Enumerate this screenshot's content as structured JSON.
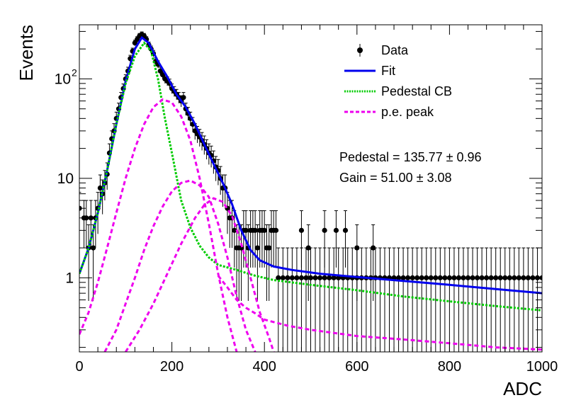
{
  "chart_data": {
    "type": "scatter",
    "xlabel": "ADC",
    "ylabel": "Events",
    "xlim": [
      0,
      1000
    ],
    "ylim": [
      0.18,
      350
    ],
    "yscale": "log",
    "grid": false,
    "legend_placement": "top-right",
    "x_ticks": [
      {
        "value": 0,
        "label": "0"
      },
      {
        "value": 200,
        "label": "200"
      },
      {
        "value": 400,
        "label": "400"
      },
      {
        "value": 600,
        "label": "600"
      },
      {
        "value": 800,
        "label": "800"
      },
      {
        "value": 1000,
        "label": "1000"
      }
    ],
    "y_ticks": [
      {
        "value": 1,
        "label": "1",
        "sup": ""
      },
      {
        "value": 10,
        "label": "10",
        "sup": ""
      },
      {
        "value": 100,
        "label": "10",
        "sup": "2"
      }
    ],
    "annotations": [
      {
        "label": "Pedestal = 135.77",
        "pm": "±",
        "value": "0.96"
      },
      {
        "label": "Gain = 51.00",
        "pm": "±",
        "value": "3.08"
      }
    ],
    "legend": [
      {
        "label": "Data",
        "kind": "marker",
        "color": "#000000"
      },
      {
        "label": "Fit",
        "kind": "line",
        "color": "#0000ee"
      },
      {
        "label": "Pedestal CB",
        "kind": "dotted",
        "color": "#00cc00"
      },
      {
        "label": "p.e. peak",
        "kind": "dashed",
        "color": "#ee00ee"
      }
    ],
    "series": [
      {
        "name": "Data",
        "color": "#000000",
        "points": [
          [
            0,
            5
          ],
          [
            10,
            4
          ],
          [
            15,
            4
          ],
          [
            20,
            2
          ],
          [
            25,
            4
          ],
          [
            30,
            2
          ],
          [
            35,
            4
          ],
          [
            40,
            5
          ],
          [
            45,
            8
          ],
          [
            50,
            7
          ],
          [
            55,
            9
          ],
          [
            60,
            11
          ],
          [
            65,
            18
          ],
          [
            70,
            25
          ],
          [
            75,
            30
          ],
          [
            80,
            40
          ],
          [
            85,
            50
          ],
          [
            90,
            65
          ],
          [
            95,
            80
          ],
          [
            100,
            100
          ],
          [
            105,
            120
          ],
          [
            110,
            160
          ],
          [
            115,
            190
          ],
          [
            120,
            230
          ],
          [
            125,
            250
          ],
          [
            130,
            270
          ],
          [
            135,
            280
          ],
          [
            140,
            270
          ],
          [
            145,
            250
          ],
          [
            150,
            220
          ],
          [
            155,
            200
          ],
          [
            160,
            180
          ],
          [
            165,
            150
          ],
          [
            170,
            140
          ],
          [
            175,
            120
          ],
          [
            180,
            110
          ],
          [
            185,
            100
          ],
          [
            190,
            95
          ],
          [
            195,
            90
          ],
          [
            200,
            80
          ],
          [
            205,
            75
          ],
          [
            210,
            70
          ],
          [
            215,
            65
          ],
          [
            220,
            60
          ],
          [
            225,
            65
          ],
          [
            230,
            50
          ],
          [
            235,
            45
          ],
          [
            240,
            40
          ],
          [
            245,
            35
          ],
          [
            250,
            30
          ],
          [
            255,
            28
          ],
          [
            260,
            26
          ],
          [
            265,
            24
          ],
          [
            270,
            22
          ],
          [
            275,
            20
          ],
          [
            280,
            18
          ],
          [
            285,
            17
          ],
          [
            290,
            15
          ],
          [
            295,
            13
          ],
          [
            300,
            12
          ],
          [
            305,
            10
          ],
          [
            310,
            8
          ],
          [
            315,
            8
          ],
          [
            320,
            5
          ],
          [
            325,
            4
          ],
          [
            330,
            4
          ],
          [
            335,
            3
          ],
          [
            340,
            2
          ],
          [
            345,
            2
          ],
          [
            350,
            2
          ],
          [
            355,
            3
          ],
          [
            360,
            3
          ],
          [
            365,
            2
          ],
          [
            370,
            3
          ],
          [
            375,
            3
          ],
          [
            380,
            3
          ],
          [
            385,
            2
          ],
          [
            390,
            3
          ],
          [
            395,
            3
          ],
          [
            400,
            3
          ],
          [
            405,
            2
          ],
          [
            410,
            2
          ],
          [
            415,
            3
          ],
          [
            420,
            3
          ],
          [
            425,
            3
          ],
          [
            430,
            1
          ],
          [
            440,
            1
          ],
          [
            450,
            1
          ],
          [
            460,
            1
          ],
          [
            470,
            1
          ],
          [
            480,
            1
          ],
          [
            490,
            1
          ],
          [
            500,
            1
          ],
          [
            510,
            1
          ],
          [
            520,
            1
          ],
          [
            530,
            1
          ],
          [
            540,
            1
          ],
          [
            550,
            1
          ],
          [
            560,
            1
          ],
          [
            570,
            1
          ],
          [
            580,
            1
          ],
          [
            590,
            1
          ],
          [
            600,
            1
          ],
          [
            610,
            1
          ],
          [
            620,
            1
          ],
          [
            630,
            1
          ],
          [
            640,
            1
          ],
          [
            650,
            1
          ],
          [
            660,
            1
          ],
          [
            670,
            1
          ],
          [
            680,
            1
          ],
          [
            690,
            1
          ],
          [
            700,
            1
          ],
          [
            710,
            1
          ],
          [
            720,
            1
          ],
          [
            730,
            1
          ],
          [
            740,
            1
          ],
          [
            750,
            1
          ],
          [
            760,
            1
          ],
          [
            770,
            1
          ],
          [
            780,
            1
          ],
          [
            790,
            1
          ],
          [
            800,
            1
          ],
          [
            810,
            1
          ],
          [
            820,
            1
          ],
          [
            830,
            1
          ],
          [
            840,
            1
          ],
          [
            850,
            1
          ],
          [
            860,
            1
          ],
          [
            870,
            1
          ],
          [
            880,
            1
          ],
          [
            890,
            1
          ],
          [
            900,
            1
          ],
          [
            910,
            1
          ],
          [
            920,
            1
          ],
          [
            930,
            1
          ],
          [
            940,
            1
          ],
          [
            950,
            1
          ],
          [
            960,
            1
          ],
          [
            970,
            1
          ],
          [
            980,
            1
          ],
          [
            990,
            1
          ],
          [
            1000,
            1
          ],
          [
            480,
            3
          ],
          [
            495,
            2
          ],
          [
            530,
            3
          ],
          [
            555,
            3
          ],
          [
            575,
            3
          ],
          [
            600,
            2
          ],
          [
            635,
            2
          ]
        ]
      },
      {
        "name": "Fit",
        "color": "#0000ee",
        "points": [
          [
            0,
            1.1
          ],
          [
            20,
            2
          ],
          [
            40,
            4.5
          ],
          [
            60,
            12
          ],
          [
            80,
            35
          ],
          [
            100,
            95
          ],
          [
            120,
            200
          ],
          [
            135,
            260
          ],
          [
            150,
            230
          ],
          [
            170,
            150
          ],
          [
            190,
            105
          ],
          [
            210,
            70
          ],
          [
            230,
            52
          ],
          [
            250,
            35
          ],
          [
            270,
            22
          ],
          [
            290,
            14
          ],
          [
            310,
            9
          ],
          [
            330,
            5.5
          ],
          [
            350,
            3
          ],
          [
            370,
            1.9
          ],
          [
            390,
            1.5
          ],
          [
            420,
            1.3
          ],
          [
            460,
            1.2
          ],
          [
            520,
            1.1
          ],
          [
            600,
            1.02
          ],
          [
            700,
            0.93
          ],
          [
            800,
            0.85
          ],
          [
            900,
            0.77
          ],
          [
            1000,
            0.7
          ]
        ]
      },
      {
        "name": "Pedestal CB",
        "color": "#00cc00",
        "points": [
          [
            0,
            1.1
          ],
          [
            20,
            2
          ],
          [
            40,
            4.5
          ],
          [
            60,
            12
          ],
          [
            80,
            35
          ],
          [
            100,
            90
          ],
          [
            120,
            170
          ],
          [
            140,
            230
          ],
          [
            155,
            190
          ],
          [
            170,
            100
          ],
          [
            185,
            40
          ],
          [
            200,
            18
          ],
          [
            220,
            6
          ],
          [
            240,
            3.2
          ],
          [
            260,
            2.1
          ],
          [
            280,
            1.6
          ],
          [
            300,
            1.35
          ],
          [
            340,
            1.2
          ],
          [
            380,
            1.05
          ],
          [
            420,
            0.95
          ],
          [
            500,
            0.85
          ],
          [
            600,
            0.75
          ],
          [
            700,
            0.65
          ],
          [
            800,
            0.58
          ],
          [
            900,
            0.52
          ],
          [
            1000,
            0.47
          ]
        ]
      },
      {
        "name": "p.e. peak 1",
        "color": "#ee00ee",
        "points": [
          [
            0,
            0.27
          ],
          [
            20,
            0.45
          ],
          [
            40,
            0.9
          ],
          [
            60,
            2
          ],
          [
            80,
            4.5
          ],
          [
            100,
            10
          ],
          [
            120,
            20
          ],
          [
            140,
            35
          ],
          [
            160,
            52
          ],
          [
            180,
            62
          ],
          [
            200,
            58
          ],
          [
            220,
            42
          ],
          [
            240,
            24
          ],
          [
            260,
            10
          ],
          [
            280,
            3.5
          ],
          [
            300,
            1.1
          ],
          [
            320,
            0.4
          ],
          [
            340,
            0.18
          ]
        ]
      },
      {
        "name": "p.e. peak 2",
        "color": "#ee00ee",
        "points": [
          [
            55,
            0.18
          ],
          [
            80,
            0.3
          ],
          [
            100,
            0.55
          ],
          [
            120,
            1
          ],
          [
            140,
            1.9
          ],
          [
            160,
            3.3
          ],
          [
            180,
            5.2
          ],
          [
            200,
            7.4
          ],
          [
            220,
            9
          ],
          [
            240,
            9.5
          ],
          [
            260,
            8.5
          ],
          [
            280,
            6.5
          ],
          [
            300,
            3.5
          ],
          [
            320,
            1.6
          ],
          [
            340,
            0.65
          ],
          [
            360,
            0.3
          ],
          [
            380,
            0.18
          ]
        ]
      },
      {
        "name": "p.e. peak 3",
        "color": "#ee00ee",
        "points": [
          [
            100,
            0.18
          ],
          [
            130,
            0.3
          ],
          [
            160,
            0.55
          ],
          [
            190,
            1.1
          ],
          [
            220,
            2.2
          ],
          [
            250,
            4
          ],
          [
            270,
            5.4
          ],
          [
            290,
            6.3
          ],
          [
            310,
            5.8
          ],
          [
            330,
            4.2
          ],
          [
            350,
            2.2
          ],
          [
            370,
            1
          ],
          [
            390,
            0.45
          ],
          [
            410,
            0.25
          ],
          [
            420,
            0.18
          ]
        ]
      },
      {
        "name": "p.e. tail",
        "color": "#ee00ee",
        "points": [
          [
            300,
            1.05
          ],
          [
            320,
            0.8
          ],
          [
            340,
            0.6
          ],
          [
            360,
            0.5
          ],
          [
            380,
            0.44
          ],
          [
            400,
            0.38
          ],
          [
            450,
            0.33
          ],
          [
            500,
            0.3
          ],
          [
            600,
            0.26
          ],
          [
            700,
            0.24
          ],
          [
            800,
            0.22
          ],
          [
            900,
            0.2
          ],
          [
            1000,
            0.19
          ]
        ]
      }
    ]
  }
}
